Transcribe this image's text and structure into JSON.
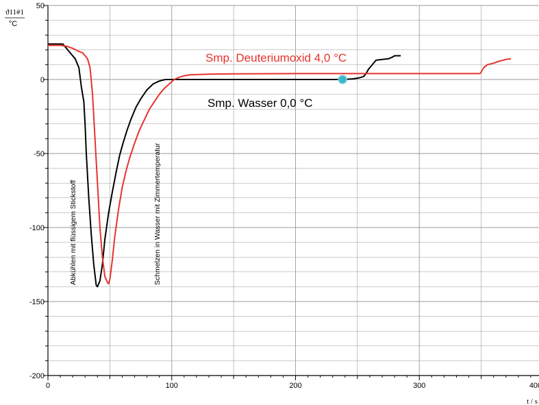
{
  "chart_data": {
    "type": "line",
    "ylabel": "ϑ11#1",
    "yunit": "°C",
    "xlabel": "t / s",
    "xlim": [
      0,
      400
    ],
    "ylim": [
      -200,
      50
    ],
    "xticks": [
      0,
      100,
      200,
      300,
      400
    ],
    "yticks": [
      -200,
      -150,
      -100,
      -50,
      0,
      50
    ],
    "grid": true,
    "series": [
      {
        "name": "Smp. Wasser 0,0 °C",
        "color": "#000000",
        "points": [
          [
            0,
            24
          ],
          [
            5,
            24
          ],
          [
            12,
            24
          ],
          [
            15,
            21
          ],
          [
            18,
            18
          ],
          [
            22,
            14
          ],
          [
            25,
            8
          ],
          [
            27,
            -5
          ],
          [
            29,
            -15
          ],
          [
            30,
            -30
          ],
          [
            31,
            -50
          ],
          [
            33,
            -80
          ],
          [
            35,
            -105
          ],
          [
            37,
            -125
          ],
          [
            39,
            -139
          ],
          [
            40,
            -140
          ],
          [
            42,
            -136
          ],
          [
            44,
            -125
          ],
          [
            46,
            -108
          ],
          [
            49,
            -90
          ],
          [
            52,
            -76
          ],
          [
            55,
            -63
          ],
          [
            58,
            -51
          ],
          [
            61,
            -42
          ],
          [
            64,
            -34
          ],
          [
            67,
            -27
          ],
          [
            71,
            -19
          ],
          [
            75,
            -13
          ],
          [
            80,
            -7
          ],
          [
            85,
            -3
          ],
          [
            90,
            -1
          ],
          [
            95,
            0
          ],
          [
            100,
            0
          ],
          [
            150,
            0
          ],
          [
            200,
            0
          ],
          [
            240,
            0
          ],
          [
            247,
            0.5
          ],
          [
            251,
            1
          ],
          [
            255,
            2
          ],
          [
            257,
            4
          ],
          [
            259,
            7
          ],
          [
            261,
            9
          ],
          [
            263,
            11
          ],
          [
            265,
            13
          ],
          [
            270,
            13.5
          ],
          [
            275,
            14
          ],
          [
            278,
            15
          ],
          [
            280,
            16
          ],
          [
            285,
            16
          ]
        ]
      },
      {
        "name": "Smp. Deuteriumoxid 4,0 °C",
        "color": "#e8312c",
        "points": [
          [
            0,
            23
          ],
          [
            5,
            23
          ],
          [
            10,
            23
          ],
          [
            15,
            22.5
          ],
          [
            20,
            21
          ],
          [
            25,
            19
          ],
          [
            28,
            18
          ],
          [
            30,
            16
          ],
          [
            32,
            14
          ],
          [
            34,
            8
          ],
          [
            36,
            -10
          ],
          [
            38,
            -40
          ],
          [
            40,
            -70
          ],
          [
            42,
            -100
          ],
          [
            44,
            -120
          ],
          [
            46,
            -133
          ],
          [
            48,
            -137
          ],
          [
            49,
            -138
          ],
          [
            50,
            -135
          ],
          [
            52,
            -122
          ],
          [
            54,
            -106
          ],
          [
            57,
            -88
          ],
          [
            60,
            -73
          ],
          [
            63,
            -62
          ],
          [
            66,
            -53
          ],
          [
            70,
            -43
          ],
          [
            74,
            -34
          ],
          [
            78,
            -27
          ],
          [
            82,
            -20
          ],
          [
            86,
            -15
          ],
          [
            90,
            -10
          ],
          [
            94,
            -6
          ],
          [
            98,
            -3
          ],
          [
            102,
            0
          ],
          [
            106,
            1.5
          ],
          [
            110,
            2.5
          ],
          [
            115,
            3.2
          ],
          [
            130,
            3.6
          ],
          [
            150,
            3.8
          ],
          [
            200,
            4
          ],
          [
            250,
            4
          ],
          [
            300,
            4
          ],
          [
            349,
            4
          ],
          [
            350,
            5
          ],
          [
            352,
            8
          ],
          [
            355,
            10
          ],
          [
            360,
            11
          ],
          [
            365,
            12.5
          ],
          [
            370,
            13.5
          ],
          [
            374,
            14
          ]
        ]
      }
    ],
    "marker": {
      "x": 238,
      "y": 0,
      "color": "#3fb6c8"
    }
  },
  "annotations": {
    "d2o_label": "Smp. Deuteriumoxid 4,0 °C",
    "water_label": "Smp. Wasser 0,0 °C",
    "cooling_label": "Abkühlen mit flüssigem Stickstoff",
    "melting_label": "Schmelzen in Wasser mit Zimmertemperatur"
  },
  "colors": {
    "water": "#000000",
    "d2o": "#e8312c",
    "grid": "#9a9a9a",
    "marker": "#3fb6c8"
  }
}
